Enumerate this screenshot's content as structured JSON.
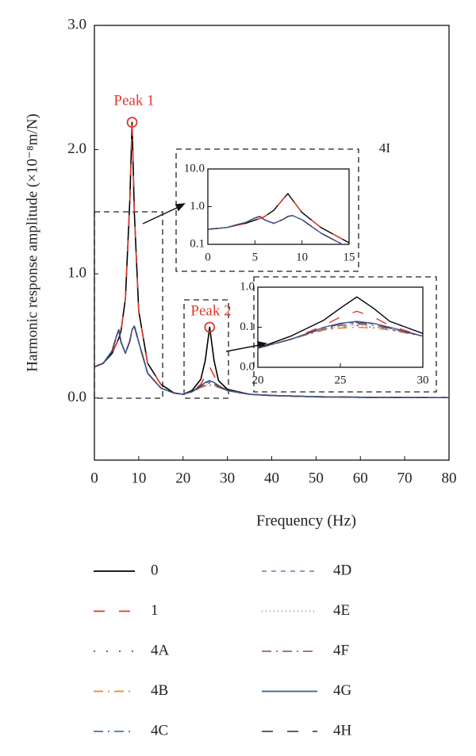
{
  "chart_data": [
    {
      "type": "line",
      "y_label": "Harmonic response amplitude (×10⁻⁸m/N)",
      "x_label": "Frequency (Hz)",
      "annotations": [
        "Peak 1",
        "Peak 2",
        "4I"
      ],
      "xlim": [
        0,
        80
      ],
      "xticks": [
        0,
        10,
        20,
        30,
        40,
        50,
        60,
        70,
        80
      ],
      "ylim": [
        -0.5,
        3.0
      ],
      "yticks": [
        {
          "value": 0,
          "label": "0.0"
        },
        {
          "value": 1,
          "label": "1.0"
        },
        {
          "value": 2,
          "label": "2.0"
        },
        {
          "value": 3,
          "label": "3.0"
        }
      ],
      "x": [
        0,
        2,
        4,
        5,
        5.5,
        6,
        7,
        8,
        8.5,
        9,
        10,
        12,
        15,
        18,
        20,
        22,
        24,
        25,
        26,
        27,
        28,
        30,
        35,
        40,
        50,
        60,
        70,
        80
      ],
      "series": [
        {
          "name": "0",
          "color": "#000000",
          "dash": "none",
          "values": [
            0.25,
            0.28,
            0.36,
            0.44,
            0.48,
            0.54,
            0.8,
            1.6,
            2.22,
            1.5,
            0.7,
            0.28,
            0.11,
            0.04,
            0.03,
            0.06,
            0.15,
            0.3,
            0.57,
            0.3,
            0.14,
            0.07,
            0.03,
            0.02,
            0.01,
            0.006,
            0.004,
            0.003
          ]
        },
        {
          "name": "1",
          "color": "#e03a2a",
          "dash": "14,18",
          "values": [
            0.25,
            0.28,
            0.36,
            0.44,
            0.48,
            0.54,
            0.8,
            1.58,
            2.2,
            1.5,
            0.7,
            0.28,
            0.11,
            0.04,
            0.03,
            0.05,
            0.11,
            0.18,
            0.25,
            0.18,
            0.11,
            0.06,
            0.03,
            0.02,
            0.01,
            0.006,
            0.004,
            0.003
          ]
        },
        {
          "name": "4A",
          "color": "#555555",
          "dash": "2,14",
          "values": [
            0.25,
            0.28,
            0.38,
            0.5,
            0.55,
            0.45,
            0.36,
            0.46,
            0.55,
            0.58,
            0.45,
            0.2,
            0.08,
            0.04,
            0.03,
            0.05,
            0.09,
            0.1,
            0.11,
            0.1,
            0.09,
            0.06,
            0.03,
            0.02,
            0.01,
            0.006,
            0.004,
            0.003
          ]
        },
        {
          "name": "4B",
          "color": "#f08020",
          "dash": "12,6,2,6",
          "values": [
            0.25,
            0.28,
            0.38,
            0.5,
            0.55,
            0.45,
            0.36,
            0.46,
            0.55,
            0.58,
            0.45,
            0.2,
            0.08,
            0.04,
            0.03,
            0.05,
            0.085,
            0.095,
            0.1,
            0.095,
            0.085,
            0.06,
            0.03,
            0.02,
            0.01,
            0.006,
            0.004,
            0.003
          ]
        },
        {
          "name": "4C",
          "color": "#4a70b0",
          "dash": "12,6,2,6",
          "values": [
            0.25,
            0.28,
            0.38,
            0.5,
            0.55,
            0.45,
            0.36,
            0.46,
            0.55,
            0.58,
            0.45,
            0.2,
            0.08,
            0.04,
            0.03,
            0.05,
            0.09,
            0.11,
            0.12,
            0.11,
            0.09,
            0.06,
            0.03,
            0.02,
            0.01,
            0.006,
            0.004,
            0.003
          ]
        },
        {
          "name": "4D",
          "color": "#8a86b8",
          "dash": "6,6",
          "values": [
            0.25,
            0.28,
            0.38,
            0.5,
            0.55,
            0.45,
            0.36,
            0.46,
            0.55,
            0.58,
            0.45,
            0.2,
            0.08,
            0.04,
            0.03,
            0.05,
            0.095,
            0.12,
            0.13,
            0.12,
            0.095,
            0.06,
            0.03,
            0.02,
            0.01,
            0.006,
            0.004,
            0.003
          ]
        },
        {
          "name": "4E",
          "color": "#909090",
          "dash": "1,4",
          "values": [
            0.25,
            0.28,
            0.38,
            0.5,
            0.55,
            0.45,
            0.36,
            0.46,
            0.55,
            0.58,
            0.45,
            0.2,
            0.08,
            0.04,
            0.03,
            0.05,
            0.09,
            0.1,
            0.11,
            0.1,
            0.09,
            0.06,
            0.03,
            0.02,
            0.01,
            0.006,
            0.004,
            0.003
          ]
        },
        {
          "name": "4F",
          "color": "#a06070",
          "dash": "12,6,2,6",
          "values": [
            0.25,
            0.28,
            0.38,
            0.5,
            0.55,
            0.45,
            0.36,
            0.46,
            0.55,
            0.58,
            0.45,
            0.2,
            0.08,
            0.04,
            0.03,
            0.05,
            0.09,
            0.11,
            0.12,
            0.11,
            0.09,
            0.06,
            0.03,
            0.02,
            0.01,
            0.006,
            0.004,
            0.003
          ]
        },
        {
          "name": "4G",
          "color": "#3a5a90",
          "dash": "none",
          "values": [
            0.25,
            0.28,
            0.38,
            0.5,
            0.55,
            0.45,
            0.36,
            0.46,
            0.55,
            0.58,
            0.45,
            0.2,
            0.08,
            0.04,
            0.03,
            0.05,
            0.1,
            0.125,
            0.14,
            0.125,
            0.1,
            0.06,
            0.03,
            0.02,
            0.01,
            0.006,
            0.004,
            0.003
          ]
        },
        {
          "name": "4H",
          "color": "#504060",
          "dash": "14,18",
          "values": [
            0.25,
            0.28,
            0.38,
            0.5,
            0.55,
            0.45,
            0.36,
            0.46,
            0.55,
            0.58,
            0.45,
            0.2,
            0.08,
            0.04,
            0.03,
            0.05,
            0.095,
            0.12,
            0.13,
            0.12,
            0.095,
            0.06,
            0.03,
            0.02,
            0.01,
            0.006,
            0.004,
            0.003
          ]
        }
      ]
    },
    {
      "type": "inset",
      "log_y": true,
      "xlim": [
        0,
        15
      ],
      "xticks": [
        0,
        5,
        10,
        15
      ],
      "ylim": [
        0.1,
        10
      ],
      "yticks": [
        {
          "value": 0.1,
          "label": "0.1"
        },
        {
          "value": 1,
          "label": "1.0"
        },
        {
          "value": 10,
          "label": "10.0"
        }
      ]
    },
    {
      "type": "inset",
      "log_y": true,
      "xlim": [
        20,
        30
      ],
      "xticks": [
        20,
        25,
        30
      ],
      "ylim": [
        0.01,
        1
      ],
      "yticks": [
        {
          "value": 0.01,
          "label": "0.0"
        },
        {
          "value": 0.1,
          "label": "0.1"
        },
        {
          "value": 1,
          "label": "1.0"
        }
      ]
    }
  ]
}
